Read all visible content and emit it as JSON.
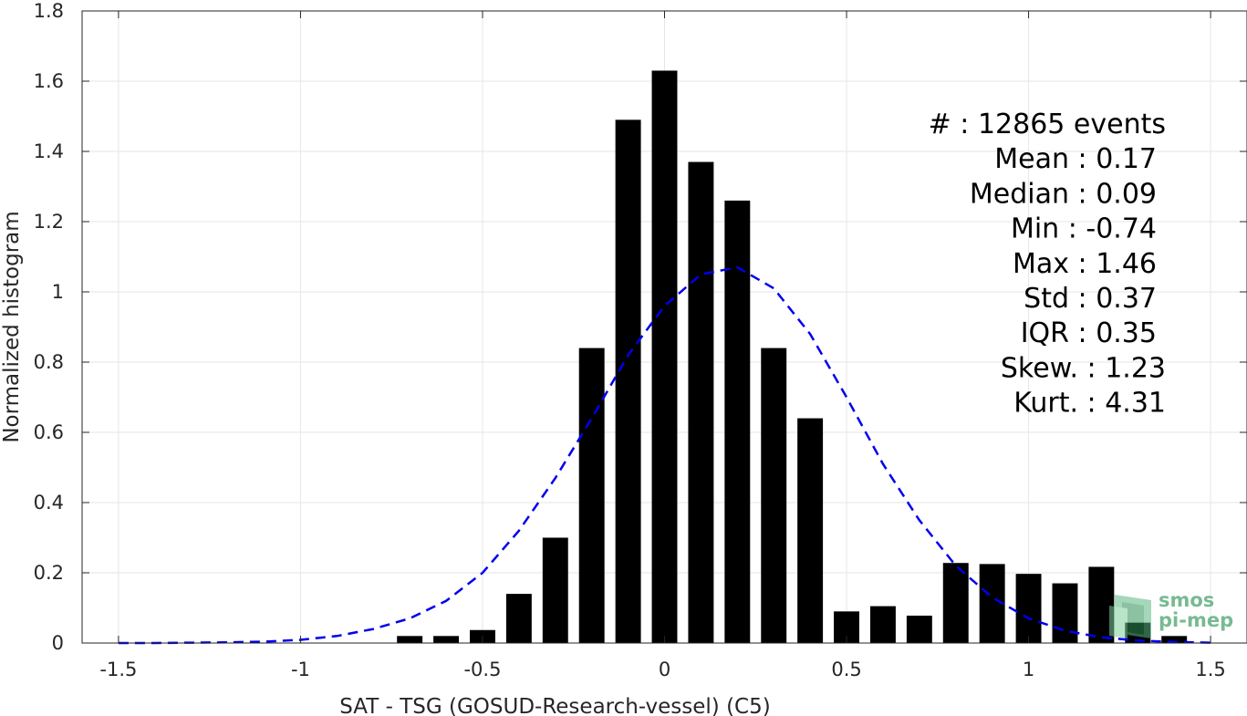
{
  "chart_data": {
    "type": "bar",
    "xlabel": "SAT - TSG (GOSUD-Research-vessel) (C5)",
    "ylabel": "Normalized histogram",
    "xlim": [
      -1.6,
      1.6
    ],
    "ylim": [
      0,
      1.8
    ],
    "xticks": [
      -1.5,
      -1,
      -0.5,
      0,
      0.5,
      1,
      1.5
    ],
    "xtick_labels": [
      "-1.5",
      "-1",
      "-0.5",
      "0",
      "0.5",
      "1",
      "1.5"
    ],
    "yticks": [
      0,
      0.2,
      0.4,
      0.6,
      0.8,
      1,
      1.2,
      1.4,
      1.6,
      1.8
    ],
    "ytick_labels": [
      "0",
      "0.2",
      "0.4",
      "0.6",
      "0.8",
      "1",
      "1.2",
      "1.4",
      "1.6",
      "1.8"
    ],
    "grid": true,
    "bar_color": "#000000",
    "bar_width": 0.07,
    "bars": {
      "x": [
        -0.7,
        -0.6,
        -0.5,
        -0.4,
        -0.3,
        -0.2,
        -0.1,
        0,
        0.1,
        0.2,
        0.3,
        0.4,
        0.5,
        0.6,
        0.7,
        0.8,
        0.9,
        1.0,
        1.1,
        1.2,
        1.3,
        1.4
      ],
      "values": [
        0.02,
        0.02,
        0.037,
        0.14,
        0.3,
        0.84,
        1.49,
        1.63,
        1.37,
        1.26,
        0.84,
        0.64,
        0.09,
        0.105,
        0.078,
        0.228,
        0.225,
        0.197,
        0.17,
        0.217,
        0.058,
        0.02
      ]
    },
    "fit_curve": {
      "style": "dashed",
      "color": "#0000ee",
      "x": [
        -1.5,
        -1.4,
        -1.3,
        -1.2,
        -1.1,
        -1.0,
        -0.9,
        -0.8,
        -0.7,
        -0.6,
        -0.5,
        -0.4,
        -0.3,
        -0.2,
        -0.1,
        0.0,
        0.1,
        0.2,
        0.3,
        0.4,
        0.5,
        0.6,
        0.7,
        0.8,
        0.9,
        1.0,
        1.1,
        1.2,
        1.3,
        1.4,
        1.5
      ],
      "y": [
        0.0,
        0.0,
        0.001,
        0.002,
        0.004,
        0.009,
        0.02,
        0.04,
        0.07,
        0.12,
        0.2,
        0.32,
        0.47,
        0.64,
        0.82,
        0.96,
        1.05,
        1.07,
        1.01,
        0.88,
        0.7,
        0.51,
        0.35,
        0.22,
        0.13,
        0.07,
        0.035,
        0.016,
        0.007,
        0.003,
        0.001
      ]
    },
    "annotations": [
      "#  : 12865 events",
      "Mean : 0.17",
      "Median : 0.09",
      "Min : -0.74",
      "Max : 1.46",
      "Std : 0.37",
      "IQR : 0.35",
      "Skew. : 1.23",
      "Kurt. : 4.31"
    ]
  },
  "logo": {
    "line1": "smos",
    "line2": "pi-mep",
    "color": "#4aa36e"
  }
}
